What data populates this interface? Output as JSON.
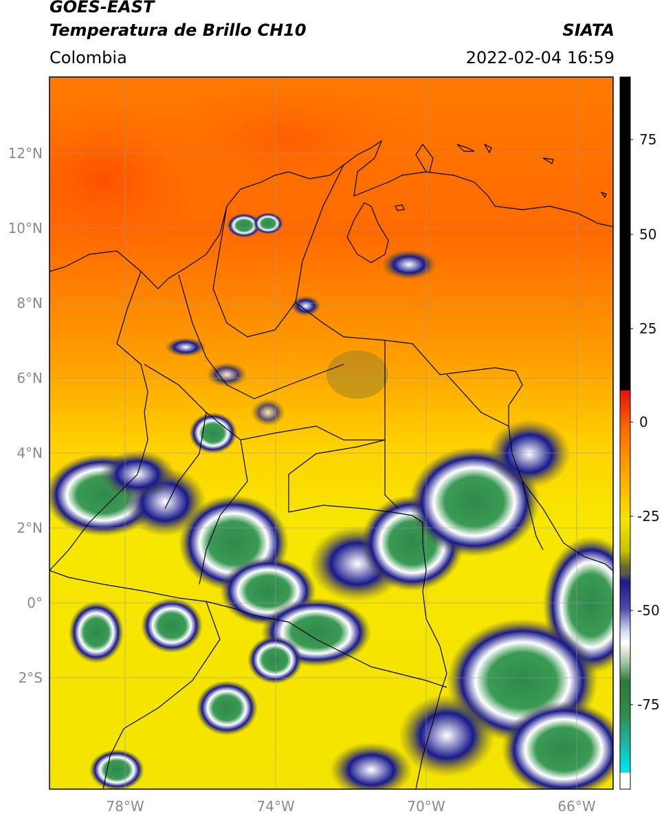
{
  "header": {
    "satellite": "GOES-EAST",
    "product": "Temperatura de Brillo CH10",
    "region": "Colombia",
    "agency": "SIATA",
    "datetime": "2022-02-04 16:59"
  },
  "map": {
    "lat_ticks": [
      "12°N",
      "10°N",
      "8°N",
      "6°N",
      "4°N",
      "2°N",
      "0°",
      "2°S"
    ],
    "lon_ticks": [
      "78°W",
      "74°W",
      "70°W",
      "66°W"
    ],
    "grid": true
  },
  "colorbar": {
    "ticks": [
      "75",
      "50",
      "25",
      "0",
      "-25",
      "-50",
      "-75"
    ],
    "colors": {
      "black_upper": "#000000",
      "red": "#e3120b",
      "orange": "#ff8c00",
      "yellow": "#f5e400",
      "olive": "#6b6b2a",
      "navy": "#1a1a8c",
      "white": "#ffffff",
      "green": "#2f8a4a",
      "teal": "#20b3a0",
      "cyan": "#00e5e5"
    }
  }
}
